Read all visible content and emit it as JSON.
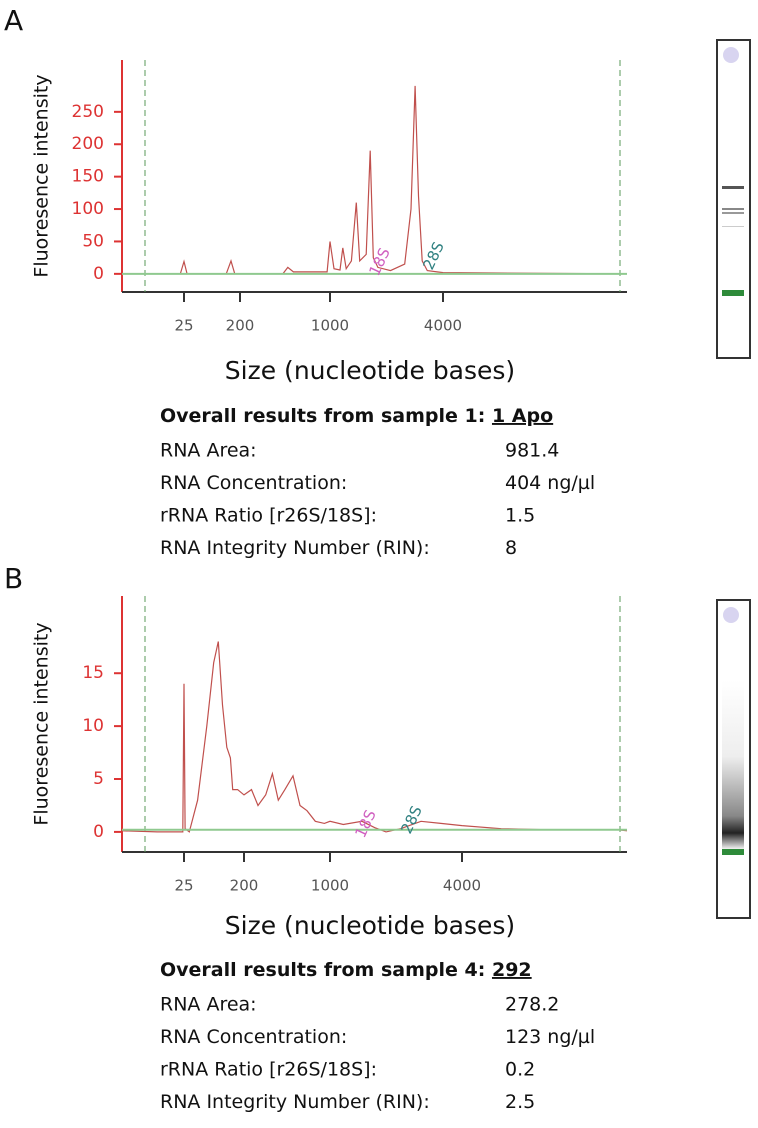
{
  "chart_data": [
    {
      "type": "line",
      "ylabel": "Fluoresence intensity",
      "xlabel": "Size (nucleotide bases)",
      "xlim": [
        3,
        38000
      ],
      "xticks": [
        25,
        200,
        1000,
        4000
      ],
      "ylim": [
        -28,
        330
      ],
      "yticks": [
        0,
        50,
        100,
        150,
        200,
        250
      ],
      "annotations": [
        "18S",
        "28S"
      ],
      "series": [
        {
          "color": "#c0504d",
          "x": [
            3,
            22,
            25,
            28,
            120,
            143,
            165,
            430,
            470,
            520,
            950,
            1000,
            1050,
            1130,
            1170,
            1220,
            1300,
            1380,
            1440,
            1560,
            1637,
            1700,
            1800,
            2100,
            2500,
            2700,
            2840,
            2960,
            3100,
            3300,
            4000,
            38000
          ],
          "values": [
            0,
            0,
            19,
            0,
            0,
            20,
            0,
            0,
            10,
            3,
            3,
            50,
            8,
            6,
            40,
            8,
            20,
            110,
            20,
            30,
            190,
            25,
            10,
            5,
            15,
            100,
            290,
            120,
            20,
            5,
            2,
            0
          ]
        },
        {
          "color": "#8fc98f",
          "x": [
            3,
            38000
          ],
          "values": [
            0,
            0
          ]
        }
      ]
    },
    {
      "type": "line",
      "ylabel": "Fluoresence intensity",
      "xlabel": "Size (nucleotide bases)",
      "xlim": [
        3,
        22000
      ],
      "xticks": [
        25,
        200,
        1000,
        4000
      ],
      "ylim": [
        -1.9,
        22.3
      ],
      "yticks": [
        0,
        5,
        10,
        15
      ],
      "annotations": [
        "18S",
        "28S"
      ],
      "series": [
        {
          "color": "#c0504d",
          "x": [
            3,
            10,
            22,
            24,
            25,
            26,
            30,
            40,
            55,
            70,
            82,
            95,
            110,
            125,
            135,
            160,
            200,
            230,
            260,
            300,
            340,
            380,
            430,
            500,
            570,
            650,
            760,
            900,
            1000,
            1150,
            1400,
            1600,
            1800,
            2100,
            2600,
            3200,
            4000,
            6000,
            10000,
            20000,
            22000
          ],
          "values": [
            0.1,
            0,
            0,
            0,
            14,
            0.3,
            0,
            3,
            10,
            16,
            18,
            12,
            8,
            7,
            4,
            4,
            3.5,
            4,
            2.5,
            3.5,
            5.5,
            3,
            4,
            5.3,
            2.5,
            2,
            1,
            0.8,
            1,
            0.7,
            1,
            0.4,
            0,
            0.3,
            1,
            0.8,
            0.6,
            0.3,
            0.2,
            0.2,
            0.1
          ]
        },
        {
          "color": "#8fc98f",
          "x": [
            3,
            22000
          ],
          "values": [
            0.2,
            0.2
          ]
        }
      ]
    }
  ],
  "panels": [
    {
      "letter": "A",
      "results": {
        "title": "Overall results from sample 1:",
        "sample": "1 Apo",
        "rows": [
          [
            "RNA Area:",
            "981.4"
          ],
          [
            "RNA Concentration:",
            "404 ng/µl"
          ],
          [
            "rRNA Ratio [r26S/18S]:",
            "1.5"
          ],
          [
            "RNA Integrity Number (RIN):",
            "8"
          ]
        ]
      }
    },
    {
      "letter": "B",
      "results": {
        "title": "Overall results from sample 4:",
        "sample": "292",
        "rows": [
          [
            "RNA Area:",
            "278.2"
          ],
          [
            "RNA Concentration:",
            "123 ng/µl"
          ],
          [
            "rRNA Ratio [r26S/18S]:",
            "0.2"
          ],
          [
            "RNA Integrity Number (RIN):",
            "2.5"
          ]
        ]
      }
    }
  ]
}
